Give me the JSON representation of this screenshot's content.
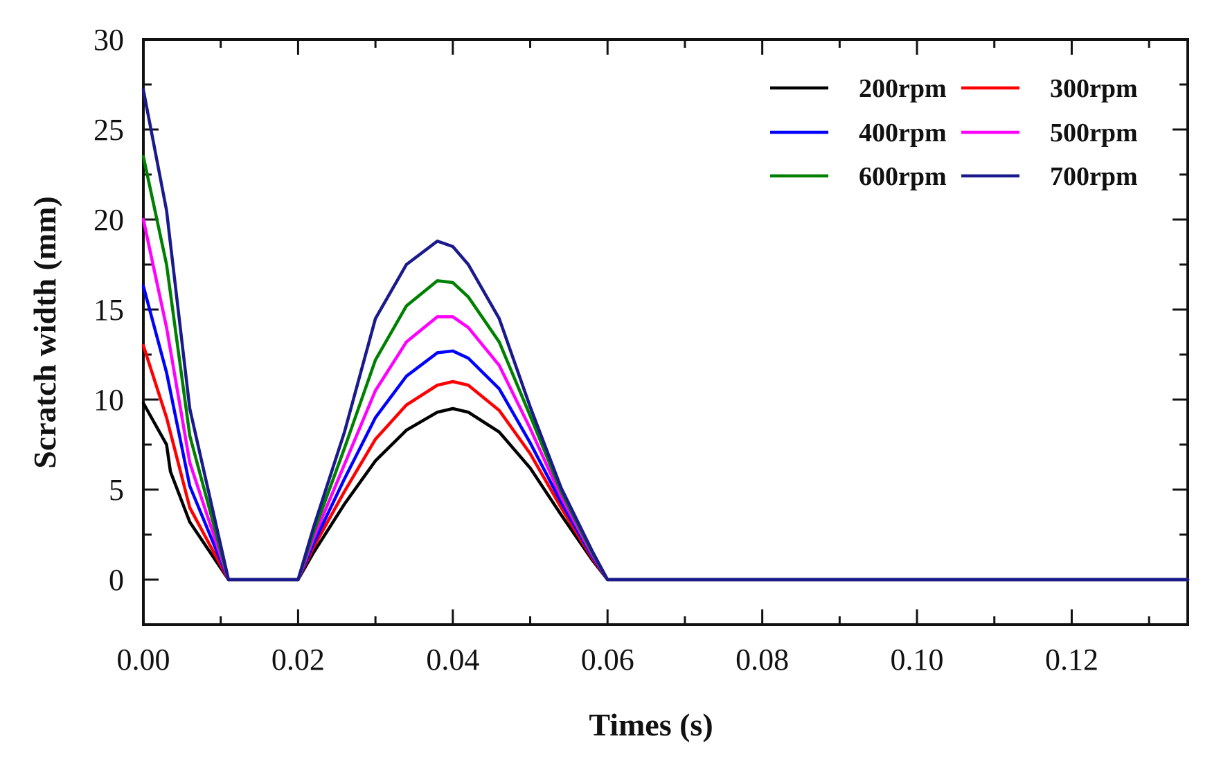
{
  "chart_data": {
    "type": "line",
    "title": "",
    "xlabel": "Times (s)",
    "ylabel": "Scratch width  (mm)",
    "xlim": [
      0,
      0.135
    ],
    "ylim": [
      -2.5,
      30
    ],
    "x_ticks": [
      0.0,
      0.02,
      0.04,
      0.06,
      0.08,
      0.1,
      0.12
    ],
    "x_tick_labels": [
      "0.00",
      "0.02",
      "0.04",
      "0.06",
      "0.08",
      "0.10",
      "0.12"
    ],
    "y_ticks": [
      0,
      5,
      10,
      15,
      20,
      25,
      30
    ],
    "y_tick_labels": [
      "0",
      "5",
      "10",
      "15",
      "20",
      "25",
      "30"
    ],
    "grid": false,
    "legend_position": "top-right",
    "legend_columns": 2,
    "series": [
      {
        "name": "200rpm",
        "color": "#000000",
        "x": [
          0,
          0.003,
          0.0035,
          0.006,
          0.011,
          0.02,
          0.022,
          0.026,
          0.03,
          0.034,
          0.038,
          0.04,
          0.042,
          0.046,
          0.05,
          0.054,
          0.058,
          0.06,
          0.135
        ],
        "y": [
          9.8,
          7.5,
          6.0,
          3.2,
          0,
          0,
          1.5,
          4.2,
          6.6,
          8.3,
          9.3,
          9.5,
          9.3,
          8.2,
          6.2,
          3.6,
          1.1,
          0,
          0
        ]
      },
      {
        "name": "300rpm",
        "color": "#ff0000",
        "x": [
          0,
          0.003,
          0.006,
          0.011,
          0.02,
          0.022,
          0.026,
          0.03,
          0.034,
          0.038,
          0.04,
          0.042,
          0.046,
          0.05,
          0.054,
          0.058,
          0.06,
          0.135
        ],
        "y": [
          13.0,
          9.0,
          4.0,
          0,
          0,
          1.8,
          4.9,
          7.8,
          9.7,
          10.8,
          11.0,
          10.8,
          9.4,
          7.0,
          4.0,
          1.2,
          0,
          0
        ]
      },
      {
        "name": "400rpm",
        "color": "#0000ff",
        "x": [
          0,
          0.003,
          0.006,
          0.011,
          0.02,
          0.022,
          0.026,
          0.03,
          0.034,
          0.038,
          0.04,
          0.042,
          0.046,
          0.05,
          0.054,
          0.058,
          0.06,
          0.135
        ],
        "y": [
          16.3,
          11.5,
          5.2,
          0,
          0,
          2.0,
          5.6,
          9.0,
          11.3,
          12.6,
          12.7,
          12.3,
          10.6,
          7.6,
          4.3,
          1.3,
          0,
          0
        ]
      },
      {
        "name": "500rpm",
        "color": "#ff00ff",
        "x": [
          0,
          0.003,
          0.006,
          0.011,
          0.02,
          0.022,
          0.026,
          0.03,
          0.034,
          0.038,
          0.04,
          0.042,
          0.046,
          0.05,
          0.054,
          0.058,
          0.06,
          0.135
        ],
        "y": [
          20.0,
          14.0,
          6.5,
          0,
          0,
          2.3,
          6.4,
          10.5,
          13.2,
          14.6,
          14.6,
          14.0,
          11.9,
          8.4,
          4.6,
          1.4,
          0,
          0
        ]
      },
      {
        "name": "600rpm",
        "color": "#008000",
        "x": [
          0,
          0.003,
          0.006,
          0.011,
          0.02,
          0.022,
          0.026,
          0.03,
          0.034,
          0.038,
          0.04,
          0.042,
          0.046,
          0.05,
          0.054,
          0.058,
          0.06,
          0.135
        ],
        "y": [
          23.5,
          17.5,
          8.0,
          0,
          0,
          2.6,
          7.3,
          12.2,
          15.2,
          16.6,
          16.5,
          15.7,
          13.2,
          9.1,
          4.9,
          1.5,
          0,
          0
        ]
      },
      {
        "name": "700rpm",
        "color": "#1a1a8c",
        "x": [
          0,
          0.003,
          0.006,
          0.011,
          0.02,
          0.022,
          0.026,
          0.03,
          0.034,
          0.038,
          0.04,
          0.042,
          0.046,
          0.05,
          0.054,
          0.058,
          0.06,
          0.135
        ],
        "y": [
          27.2,
          20.5,
          9.5,
          0,
          0,
          2.9,
          8.2,
          14.5,
          17.5,
          18.8,
          18.5,
          17.5,
          14.5,
          9.6,
          5.1,
          1.6,
          0,
          0
        ]
      }
    ]
  }
}
